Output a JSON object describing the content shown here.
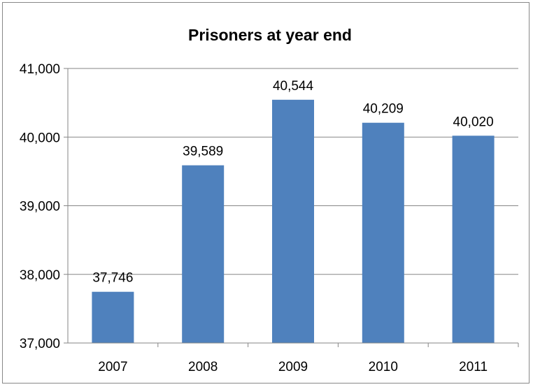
{
  "chart_data": {
    "type": "bar",
    "title": "Prisoners at year end",
    "xlabel": "",
    "ylabel": "",
    "categories": [
      "2007",
      "2008",
      "2009",
      "2010",
      "2011"
    ],
    "values": [
      37746,
      39589,
      40544,
      40209,
      40020
    ],
    "value_labels": [
      "37,746",
      "39,589",
      "40,544",
      "40,209",
      "40,020"
    ],
    "ylim": [
      37000,
      41000
    ],
    "yticks": [
      37000,
      38000,
      39000,
      40000,
      41000
    ],
    "ytick_labels": [
      "37,000",
      "38,000",
      "39,000",
      "40,000",
      "41,000"
    ],
    "grid": true,
    "legend": "none",
    "bar_color": "#4f81bd"
  }
}
